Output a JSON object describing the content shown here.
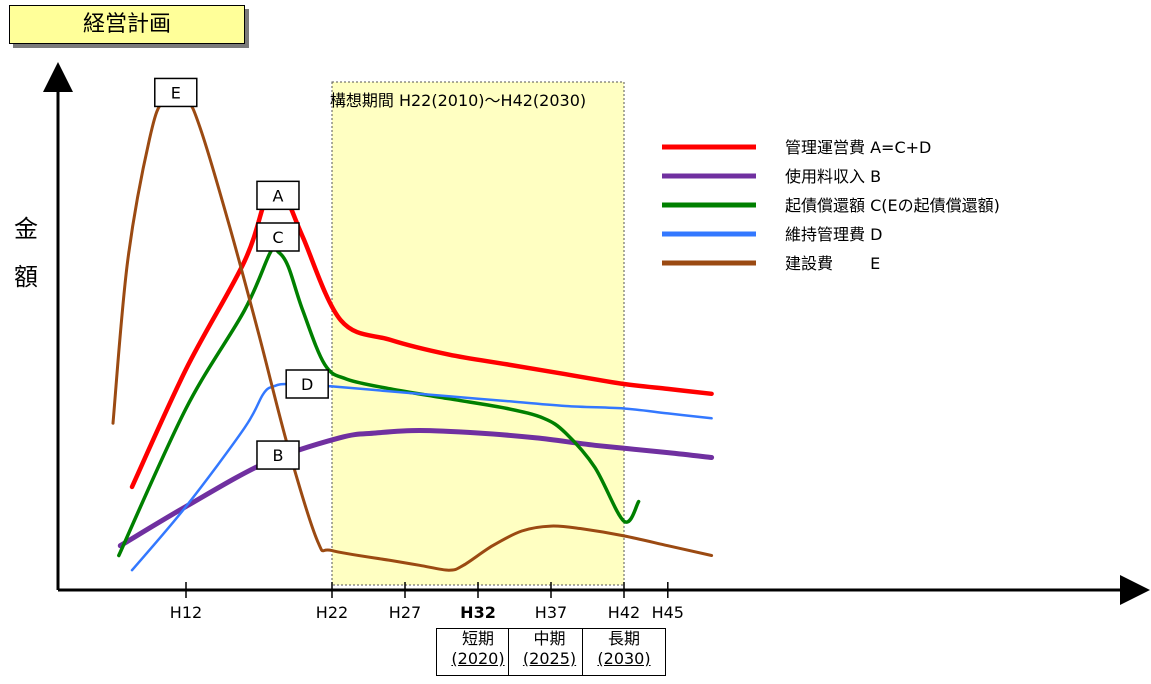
{
  "header": {
    "title": "経営計画"
  },
  "colors": {
    "highlight": "#ffffc2",
    "A": "#ff0000",
    "B": "#7030a0",
    "C": "#008000",
    "D": "#3378ff",
    "E": "#9b4a12"
  },
  "chart_data": {
    "type": "line",
    "title": "",
    "xlabel": "",
    "ylabel": "金額",
    "x_ticks": [
      "H12",
      "H22",
      "H27",
      "H32",
      "H37",
      "H42",
      "H45"
    ],
    "xlim": [
      7,
      48
    ],
    "ylim": [
      0,
      100
    ],
    "highlight_region": {
      "label": "構想期間 H22(2010)～H42(2030)",
      "from": 22,
      "to": 42
    },
    "period_labels": [
      {
        "x": 32,
        "name": "短期",
        "year": "(2020)"
      },
      {
        "x": 36.9,
        "name": "中期",
        "year": "(2025)"
      },
      {
        "x": 42,
        "name": "長期",
        "year": "(2030)"
      }
    ],
    "series": [
      {
        "key": "A",
        "name": "管理運営費 A=C+D",
        "color": "#ff0000",
        "points": [
          [
            8.3,
            19
          ],
          [
            12,
            43
          ],
          [
            16,
            65
          ],
          [
            17.5,
            78
          ],
          [
            18.3,
            78.5
          ],
          [
            19,
            77
          ],
          [
            20,
            70
          ],
          [
            22.6,
            53
          ],
          [
            26,
            49
          ],
          [
            30,
            46
          ],
          [
            34,
            44
          ],
          [
            38,
            42
          ],
          [
            42,
            40
          ],
          [
            45,
            39
          ],
          [
            48,
            38
          ]
        ]
      },
      {
        "key": "B",
        "name": "使用料収入 B",
        "color": "#7030a0",
        "points": [
          [
            7.5,
            7
          ],
          [
            12,
            15
          ],
          [
            17.5,
            24
          ],
          [
            22.5,
            29
          ],
          [
            25,
            30
          ],
          [
            28,
            30.5
          ],
          [
            32,
            30
          ],
          [
            36,
            29
          ],
          [
            40,
            27.5
          ],
          [
            45,
            26
          ],
          [
            48,
            25
          ]
        ]
      },
      {
        "key": "C",
        "name": "起債償還額 C(Eの起債償還額)",
        "color": "#008000",
        "points": [
          [
            7.4,
            5
          ],
          [
            12,
            35
          ],
          [
            16,
            55
          ],
          [
            17.8,
            67
          ],
          [
            18.3,
            67
          ],
          [
            19,
            64
          ],
          [
            20,
            55
          ],
          [
            21.5,
            44
          ],
          [
            23,
            41
          ],
          [
            26,
            39
          ],
          [
            30,
            37
          ],
          [
            34,
            35
          ],
          [
            36.5,
            33
          ],
          [
            38,
            30
          ],
          [
            40,
            23
          ],
          [
            42,
            12
          ],
          [
            43,
            16
          ]
        ]
      },
      {
        "key": "D",
        "name": "維持管理費 D",
        "color": "#3378ff",
        "points": [
          [
            8.3,
            2
          ],
          [
            12,
            15
          ],
          [
            16,
            31
          ],
          [
            17.3,
            38
          ],
          [
            18,
            39.5
          ],
          [
            19,
            40
          ],
          [
            22,
            39.5
          ],
          [
            26,
            38.5
          ],
          [
            30,
            37.5
          ],
          [
            34,
            36.5
          ],
          [
            38,
            35.5
          ],
          [
            42,
            35
          ],
          [
            45,
            34
          ],
          [
            48,
            33
          ]
        ]
      },
      {
        "key": "E",
        "name": "建設費 E",
        "color": "#9b4a12",
        "points": [
          [
            7,
            32
          ],
          [
            8,
            65
          ],
          [
            9.5,
            90
          ],
          [
            10.5,
            98
          ],
          [
            12,
            98
          ],
          [
            13,
            92
          ],
          [
            15,
            72
          ],
          [
            17,
            50
          ],
          [
            19,
            27
          ],
          [
            21,
            8
          ],
          [
            22,
            6
          ],
          [
            26,
            4
          ],
          [
            28,
            3
          ],
          [
            30,
            2
          ],
          [
            31,
            3
          ],
          [
            33,
            7
          ],
          [
            35,
            10
          ],
          [
            37,
            11
          ],
          [
            39,
            10.5
          ],
          [
            42,
            9
          ],
          [
            45,
            7
          ],
          [
            48,
            5
          ]
        ]
      }
    ],
    "point_labels": [
      {
        "series": "A",
        "text": "A",
        "x": 18.3,
        "y": 78.5
      },
      {
        "series": "B",
        "text": "B",
        "x": 18.3,
        "y": 25.5
      },
      {
        "series": "C",
        "text": "C",
        "x": 18.3,
        "y": 70
      },
      {
        "series": "D",
        "text": "D",
        "x": 20.3,
        "y": 40
      },
      {
        "series": "E",
        "text": "E",
        "x": 11.3,
        "y": 99.5
      }
    ],
    "legend": {
      "placement": "top-right",
      "entries": [
        {
          "series": "A",
          "label": "管理運営費 A=C+D"
        },
        {
          "series": "B",
          "label": "使用料収入 B"
        },
        {
          "series": "C",
          "label": "起債償還額 C(Eの起債償還額)"
        },
        {
          "series": "D",
          "label": "維持管理費 D"
        },
        {
          "series": "E",
          "label": "建設費 　　E"
        }
      ]
    }
  }
}
